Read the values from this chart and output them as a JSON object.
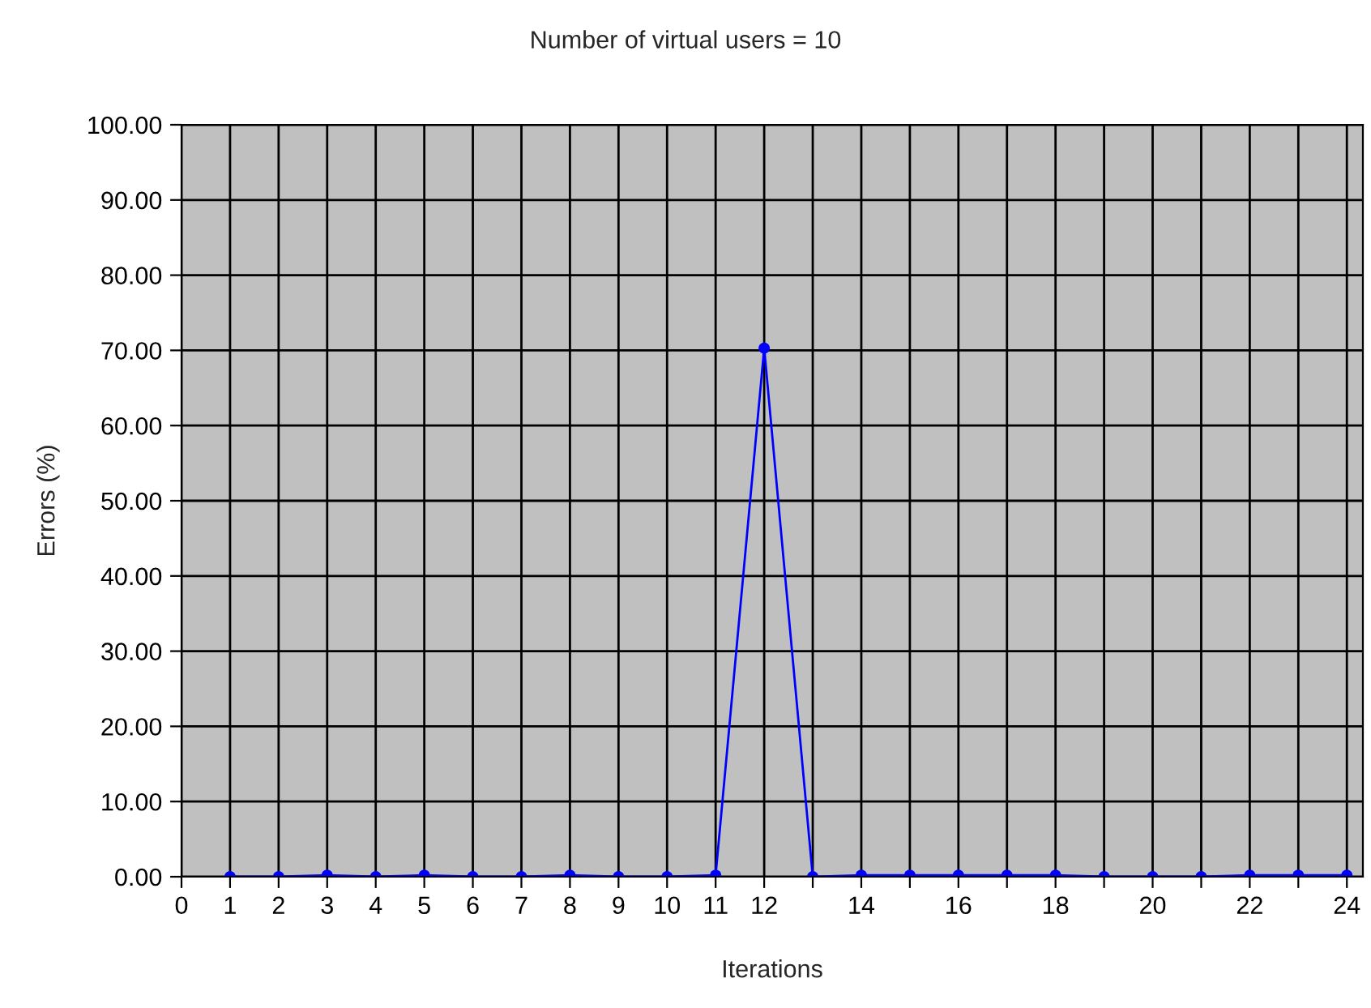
{
  "chart_data": {
    "type": "line",
    "title": "Number of virtual users = 10",
    "xlabel": "Iterations",
    "ylabel": "Errors (%)",
    "x": [
      1,
      2,
      3,
      4,
      5,
      6,
      7,
      8,
      9,
      10,
      11,
      12,
      13,
      14,
      15,
      16,
      17,
      18,
      19,
      20,
      21,
      22,
      23,
      24
    ],
    "series": [
      {
        "color": "#0000ff",
        "values": [
          0,
          0,
          0.2,
          0,
          0.2,
          0,
          0,
          0.2,
          0,
          0,
          0.2,
          70.3,
          0,
          0.2,
          0.2,
          0.2,
          0.2,
          0.2,
          0,
          0,
          0,
          0.2,
          0.2,
          0.2
        ]
      }
    ],
    "xlim": [
      0,
      24.33
    ],
    "xticks": [
      0,
      1,
      2,
      3,
      4,
      5,
      6,
      7,
      8,
      9,
      10,
      11,
      12,
      {
        "value": 13,
        "label": null
      },
      14,
      {
        "value": 15,
        "label": null
      },
      16,
      {
        "value": 17,
        "label": null
      },
      18,
      {
        "value": 19,
        "label": null
      },
      20,
      {
        "value": 21,
        "label": null
      },
      22,
      {
        "value": 23,
        "label": null
      },
      24
    ],
    "ylim": [
      0,
      100
    ],
    "yticks": [
      {
        "value": 0,
        "label": "0.00"
      },
      {
        "value": 10,
        "label": "10.00"
      },
      {
        "value": 20,
        "label": "20.00"
      },
      {
        "value": 30,
        "label": "30.00"
      },
      {
        "value": 40,
        "label": "40.00"
      },
      {
        "value": 50,
        "label": "50.00"
      },
      {
        "value": 60,
        "label": "60.00"
      },
      {
        "value": 70,
        "label": "70.00"
      },
      {
        "value": 80,
        "label": "80.00"
      },
      {
        "value": 90,
        "label": "90.00"
      },
      {
        "value": 100,
        "label": "100.00"
      }
    ],
    "grid": true,
    "marker": "circle",
    "line_style": "solid"
  }
}
